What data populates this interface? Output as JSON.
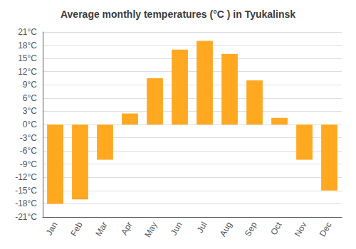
{
  "chart_data": {
    "type": "bar",
    "title": "Average monthly temperatures (°C ) in Tyukalinsk",
    "categories": [
      "Jan",
      "Feb",
      "Mar",
      "Apr",
      "May",
      "Jun",
      "Jul",
      "Aug",
      "Sep",
      "Oct",
      "Nov",
      "Dec"
    ],
    "values": [
      -18,
      -17,
      -8,
      2.5,
      10.5,
      17,
      19,
      16,
      10,
      1.5,
      -8,
      -15
    ],
    "color": "#FFA820",
    "ylim": [
      -21,
      21
    ],
    "yticks": [
      {
        "value": -21,
        "label": "-21°C"
      },
      {
        "value": -18,
        "label": "-18°C"
      },
      {
        "value": -15,
        "label": "-15°C"
      },
      {
        "value": -12,
        "label": "-12°C"
      },
      {
        "value": -9,
        "label": "-9°C"
      },
      {
        "value": -6,
        "label": "-6°C"
      },
      {
        "value": -3,
        "label": "-3°C"
      },
      {
        "value": 0,
        "label": "0°C"
      },
      {
        "value": 3,
        "label": "3°C"
      },
      {
        "value": 6,
        "label": "6°C"
      },
      {
        "value": 9,
        "label": "9°C"
      },
      {
        "value": 12,
        "label": "12°C"
      },
      {
        "value": 15,
        "label": "15°C"
      },
      {
        "value": 18,
        "label": "18°C"
      },
      {
        "value": 21,
        "label": "21°C"
      }
    ],
    "grid": true
  }
}
